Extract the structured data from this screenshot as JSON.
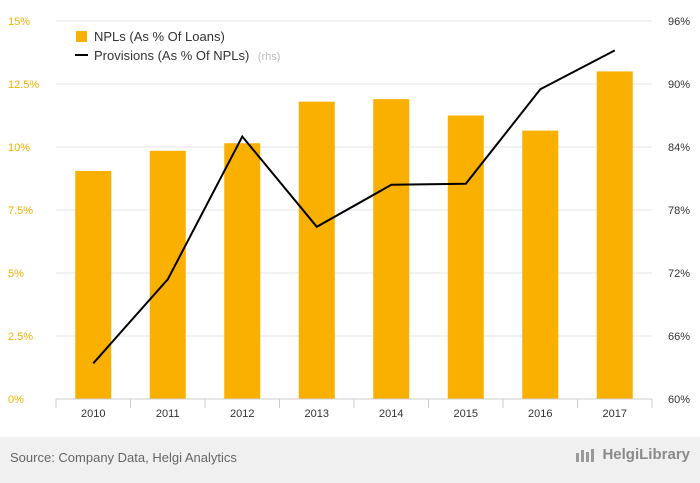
{
  "chart_data": {
    "type": "bar+line",
    "categories": [
      "2010",
      "2011",
      "2012",
      "2013",
      "2014",
      "2015",
      "2016",
      "2017"
    ],
    "series": [
      {
        "name": "NPLs (As % Of Loans)",
        "type": "bar",
        "axis": "left",
        "color": "#f9b000",
        "values": [
          9.05,
          9.85,
          10.15,
          11.8,
          11.9,
          11.25,
          10.65,
          13.0
        ]
      },
      {
        "name": "Provisions (As % Of NPLs)",
        "type": "line",
        "axis": "right",
        "color": "#000000",
        "values": [
          63.4,
          71.4,
          85.0,
          76.4,
          80.4,
          80.5,
          89.5,
          93.2
        ]
      }
    ],
    "left_axis": {
      "min": 0,
      "max": 15,
      "ticks": [
        0,
        2.5,
        5,
        7.5,
        10,
        12.5,
        15
      ],
      "tick_labels": [
        "0%",
        "2.5%",
        "5%",
        "7.5%",
        "10%",
        "12.5%",
        "15%"
      ]
    },
    "right_axis": {
      "min": 60,
      "max": 96,
      "ticks": [
        60,
        66,
        72,
        78,
        84,
        90,
        96
      ],
      "tick_labels": [
        "60%",
        "66%",
        "72%",
        "78%",
        "84%",
        "90%",
        "96%"
      ]
    },
    "grid": true,
    "legend_position": "top-left"
  },
  "legend": {
    "bar_label": "NPLs (As % Of Loans)",
    "line_label": "Provisions (As % Of NPLs)",
    "line_suffix": "(rhs)"
  },
  "footer": {
    "source": "Source: Company Data, Helgi Analytics",
    "brand_name": "HelgiLibrary"
  }
}
